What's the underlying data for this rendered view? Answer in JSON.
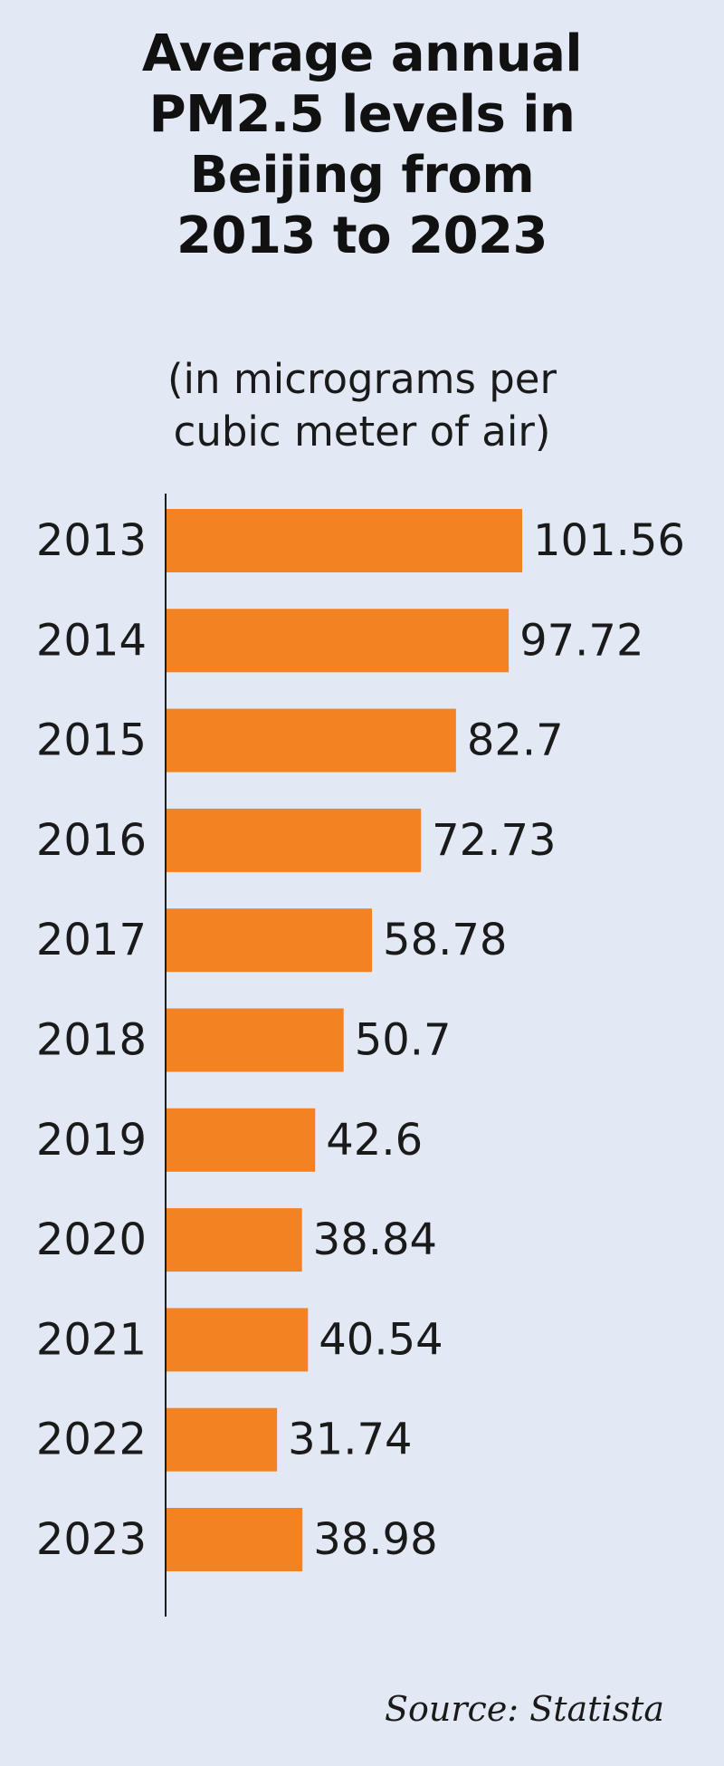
{
  "title_lines": [
    "Average annual",
    "PM2.5 levels in",
    "Beijing from",
    "2013 to 2023"
  ],
  "subtitle_lines": [
    "(in micrograms per",
    "cubic meter of air)"
  ],
  "source": "Source: Statista",
  "colors": {
    "background": "#e2e9f5",
    "bar": "#f28222",
    "axis": "#1a1a1a",
    "text": "#1a1a1a"
  },
  "chart_data": {
    "type": "bar",
    "orientation": "horizontal",
    "title": "Average annual PM2.5 levels in Beijing from 2013 to 2023",
    "subtitle": "(in micrograms per cubic meter of air)",
    "categories": [
      "2013",
      "2014",
      "2015",
      "2016",
      "2017",
      "2018",
      "2019",
      "2020",
      "2021",
      "2022",
      "2023"
    ],
    "values": [
      101.56,
      97.72,
      82.7,
      72.73,
      58.78,
      50.7,
      42.6,
      38.84,
      40.54,
      31.74,
      38.98
    ],
    "value_labels": [
      "101.56",
      "97.72",
      "82.7",
      "72.73",
      "58.78",
      "50.7",
      "42.6",
      "38.84",
      "40.54",
      "31.74",
      "38.98"
    ],
    "xlim": [
      0,
      101.56
    ],
    "grid": false,
    "legend": "none",
    "data_labels": "outside-end"
  }
}
